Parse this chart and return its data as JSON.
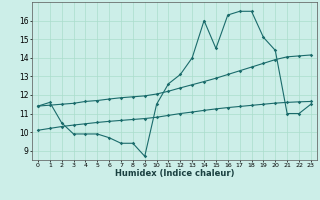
{
  "xlabel": "Humidex (Indice chaleur)",
  "bg_color": "#cceee8",
  "grid_color": "#aaddcc",
  "line_color": "#1a6b6b",
  "xlim": [
    -0.5,
    23.5
  ],
  "ylim": [
    8.5,
    17.0
  ],
  "yticks": [
    9,
    10,
    11,
    12,
    13,
    14,
    15,
    16
  ],
  "xticks": [
    0,
    1,
    2,
    3,
    4,
    5,
    6,
    7,
    8,
    9,
    10,
    11,
    12,
    13,
    14,
    15,
    16,
    17,
    18,
    19,
    20,
    21,
    22,
    23
  ],
  "series": [
    [
      11.4,
      11.6,
      10.5,
      9.9,
      9.9,
      9.9,
      9.7,
      9.4,
      9.4,
      8.7,
      11.5,
      12.6,
      13.1,
      14.0,
      16.0,
      14.5,
      16.3,
      16.5,
      16.5,
      15.1,
      14.4,
      11.0,
      11.0,
      11.5
    ],
    [
      11.4,
      11.45,
      11.5,
      11.55,
      11.65,
      11.7,
      11.78,
      11.85,
      11.9,
      11.95,
      12.05,
      12.2,
      12.38,
      12.55,
      12.72,
      12.9,
      13.1,
      13.3,
      13.5,
      13.7,
      13.9,
      14.05,
      14.1,
      14.15
    ],
    [
      10.1,
      10.2,
      10.3,
      10.38,
      10.45,
      10.52,
      10.58,
      10.63,
      10.68,
      10.73,
      10.8,
      10.9,
      11.0,
      11.08,
      11.17,
      11.25,
      11.32,
      11.38,
      11.44,
      11.5,
      11.56,
      11.6,
      11.63,
      11.65
    ]
  ]
}
